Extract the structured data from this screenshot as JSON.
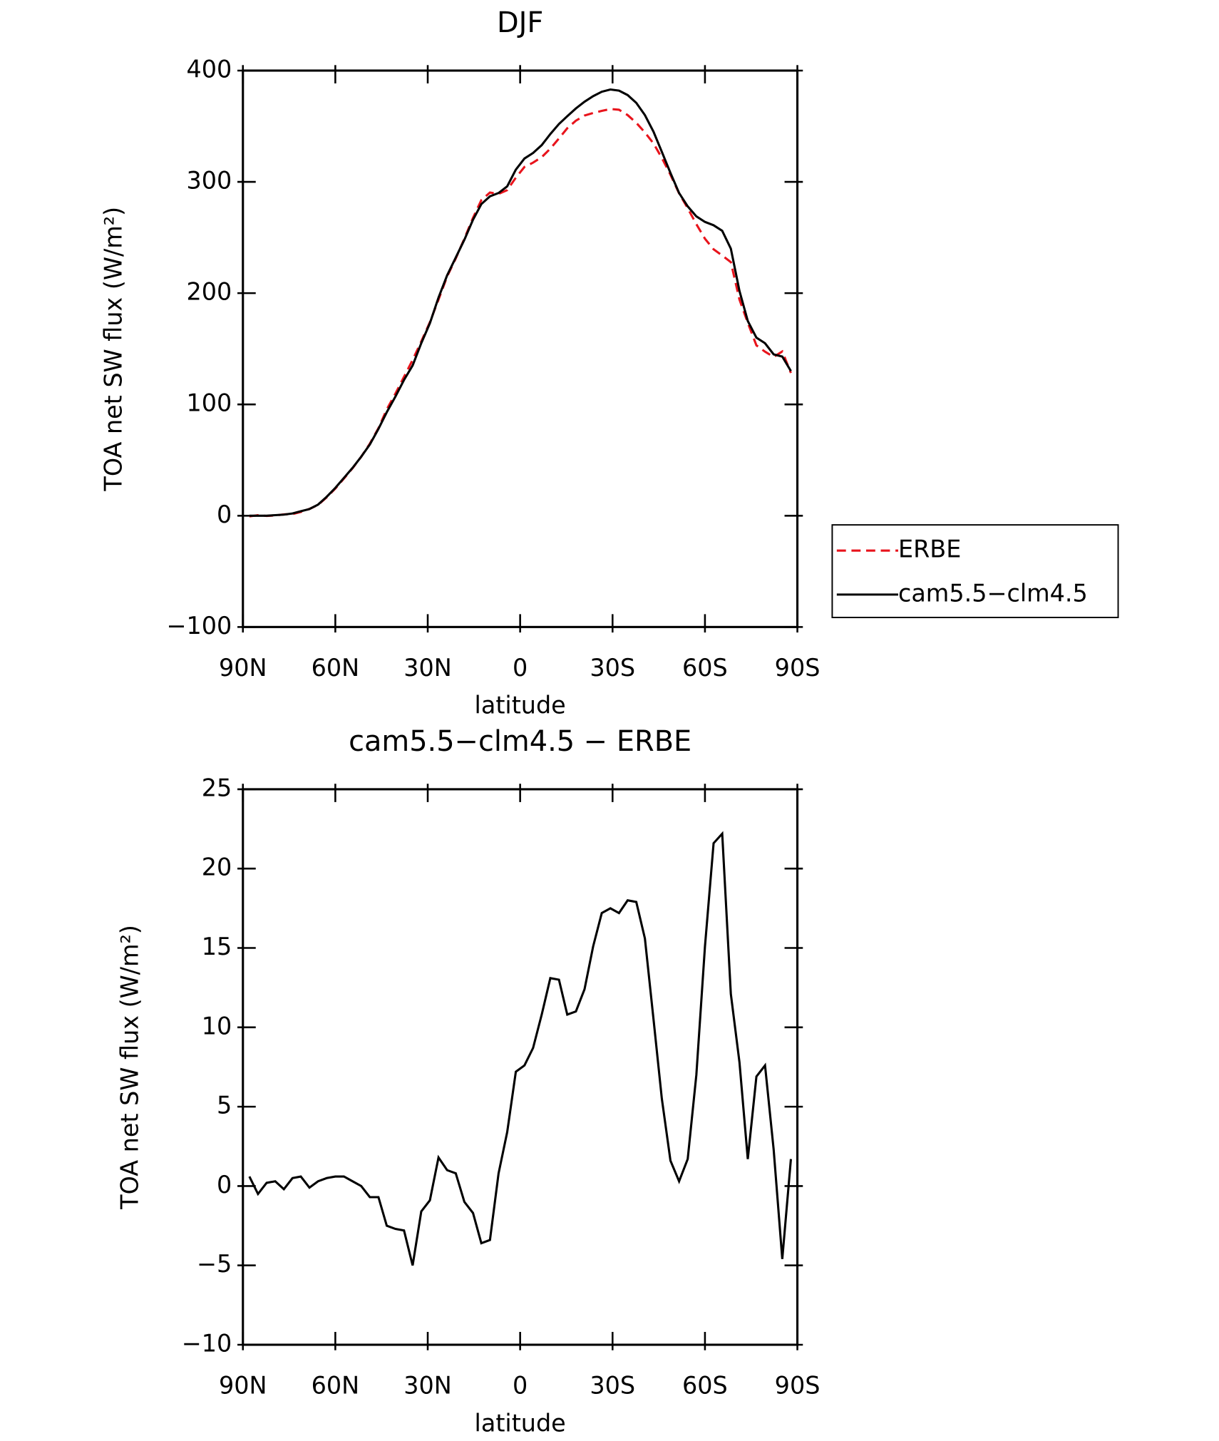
{
  "chart_data": [
    {
      "type": "line",
      "title": "DJF",
      "xlabel": "latitude",
      "ylabel": "TOA net SW flux (W/m²)",
      "x": [
        87.9,
        85.1,
        82.3,
        79.5,
        76.7,
        73.9,
        71.2,
        68.4,
        65.6,
        62.8,
        60.0,
        57.2,
        54.4,
        51.6,
        48.8,
        46.0,
        43.3,
        40.5,
        37.7,
        34.9,
        32.1,
        29.3,
        26.5,
        23.7,
        20.9,
        18.1,
        15.3,
        12.6,
        9.8,
        7.0,
        4.2,
        1.4,
        -1.4,
        -4.2,
        -7.0,
        -9.8,
        -12.6,
        -15.3,
        -18.1,
        -20.9,
        -23.7,
        -26.5,
        -29.3,
        -32.1,
        -34.9,
        -37.7,
        -40.5,
        -43.3,
        -46.0,
        -48.8,
        -51.6,
        -54.4,
        -57.2,
        -60.0,
        -62.8,
        -65.6,
        -68.4,
        -71.2,
        -73.9,
        -76.7,
        -79.5,
        -82.3,
        -85.1,
        -87.9
      ],
      "series": [
        {
          "name": "ERBE",
          "color": "#e8141c",
          "line_style": "dashed",
          "values": [
            -0.6,
            0.5,
            -0.2,
            0.2,
            1.2,
            1.5,
            3.4,
            6.1,
            9.7,
            16.5,
            24.4,
            33.4,
            42.7,
            53,
            64.7,
            78.7,
            95.5,
            109.7,
            124.8,
            140,
            156.6,
            173.9,
            194.2,
            215,
            231.2,
            249,
            267.7,
            283.6,
            290.4,
            289.2,
            292.6,
            303.8,
            313.4,
            317.3,
            322.2,
            329.9,
            339,
            348.2,
            355,
            359.6,
            361.9,
            363.8,
            365.5,
            364.8,
            360,
            353.1,
            344.4,
            334.5,
            321.5,
            306.4,
            289.7,
            276.3,
            262,
            248.9,
            239.4,
            233.8,
            227.9,
            194.2,
            173.3,
            153.1,
            147.4,
            142.7,
            147.6,
            128.3
          ]
        },
        {
          "name": "cam5.5−clm4.5",
          "color": "#000000",
          "line_style": "solid",
          "values": [
            0,
            0,
            0,
            0.5,
            1,
            2,
            4,
            6,
            10,
            17,
            25,
            34,
            43,
            53,
            64,
            78,
            93,
            107,
            122,
            135,
            155,
            173,
            196,
            216,
            232,
            248,
            266,
            280,
            287,
            290,
            296,
            311,
            321,
            326,
            333,
            343,
            352,
            359,
            366,
            372,
            377,
            381,
            383,
            382,
            378,
            371,
            360,
            345,
            327,
            308,
            290,
            278,
            269,
            264,
            261,
            256,
            240,
            202,
            175,
            160,
            155,
            145,
            143,
            130
          ]
        }
      ],
      "xlim": [
        90,
        -90
      ],
      "xticks": [
        {
          "value": 90,
          "label": "90N"
        },
        {
          "value": 60,
          "label": "60N"
        },
        {
          "value": 30,
          "label": "30N"
        },
        0,
        {
          "value": -30,
          "label": "30S"
        },
        {
          "value": -60,
          "label": "60S"
        },
        {
          "value": -90,
          "label": "90S"
        }
      ],
      "ylim": [
        -100,
        400
      ],
      "yticks": [
        {
          "value": -100,
          "label": "−100"
        },
        0,
        100,
        200,
        300,
        400
      ],
      "legend": "outside right"
    },
    {
      "type": "line",
      "title": "cam5.5−clm4.5 − ERBE",
      "xlabel": "latitude",
      "ylabel": "TOA net SW flux (W/m²)",
      "x": [
        87.9,
        85.1,
        82.3,
        79.5,
        76.7,
        73.9,
        71.2,
        68.4,
        65.6,
        62.8,
        60.0,
        57.2,
        54.4,
        51.6,
        48.8,
        46.0,
        43.3,
        40.5,
        37.7,
        34.9,
        32.1,
        29.3,
        26.5,
        23.7,
        20.9,
        18.1,
        15.3,
        12.6,
        9.8,
        7.0,
        4.2,
        1.4,
        -1.4,
        -4.2,
        -7.0,
        -9.8,
        -12.6,
        -15.3,
        -18.1,
        -20.9,
        -23.7,
        -26.5,
        -29.3,
        -32.1,
        -34.9,
        -37.7,
        -40.5,
        -43.3,
        -46.0,
        -48.8,
        -51.6,
        -54.4,
        -57.2,
        -60.0,
        -62.8,
        -65.6,
        -68.4,
        -71.2,
        -73.9,
        -76.7,
        -79.5,
        -82.3,
        -85.1,
        -87.9
      ],
      "series": [
        {
          "color": "#000000",
          "line_style": "solid",
          "values": [
            0.6,
            -0.5,
            0.2,
            0.3,
            -0.2,
            0.5,
            0.6,
            -0.1,
            0.3,
            0.5,
            0.6,
            0.6,
            0.3,
            0,
            -0.7,
            -0.7,
            -2.5,
            -2.7,
            -2.8,
            -5.0,
            -1.6,
            -0.9,
            1.8,
            1.0,
            0.8,
            -1.0,
            -1.7,
            -3.6,
            -3.4,
            0.8,
            3.4,
            7.2,
            7.6,
            8.7,
            10.8,
            13.1,
            13.0,
            10.8,
            11.0,
            12.4,
            15.1,
            17.2,
            17.5,
            17.2,
            18.0,
            17.9,
            15.6,
            10.5,
            5.5,
            1.6,
            0.3,
            1.7,
            7.0,
            15.1,
            21.6,
            22.2,
            12.1,
            7.8,
            1.7,
            6.9,
            7.6,
            2.3,
            -4.6,
            1.7
          ]
        }
      ],
      "xlim": [
        90,
        -90
      ],
      "xticks": [
        {
          "value": 90,
          "label": "90N"
        },
        {
          "value": 60,
          "label": "60N"
        },
        {
          "value": 30,
          "label": "30N"
        },
        0,
        {
          "value": -30,
          "label": "30S"
        },
        {
          "value": -60,
          "label": "60S"
        },
        {
          "value": -90,
          "label": "90S"
        }
      ],
      "ylim": [
        -10,
        25
      ],
      "yticks": [
        {
          "value": -10,
          "label": "−10"
        },
        {
          "value": -5,
          "label": "−5"
        },
        0,
        5,
        10,
        15,
        20,
        25
      ]
    }
  ]
}
